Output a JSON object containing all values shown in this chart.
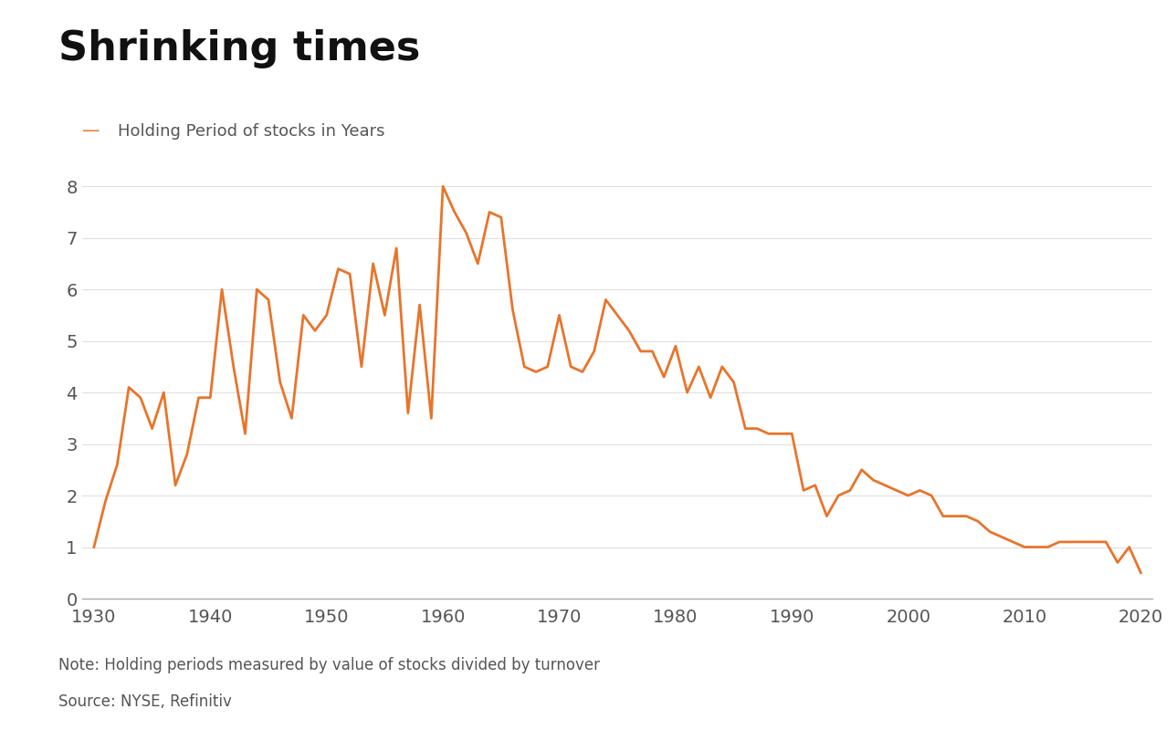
{
  "title": "Shrinking times",
  "legend_label": "Holding Period of stocks in Years",
  "note": "Note: Holding periods measured by value of stocks divided by turnover",
  "source": "Source: NYSE, Refinitiv",
  "line_color": "#E8742A",
  "background_color": "#ffffff",
  "title_fontsize": 32,
  "legend_fontsize": 13,
  "note_fontsize": 12,
  "tick_fontsize": 14,
  "ylim": [
    0,
    8.5
  ],
  "yticks": [
    0,
    1,
    2,
    3,
    4,
    5,
    6,
    7,
    8
  ],
  "xlim": [
    1929,
    2021
  ],
  "xticks": [
    1930,
    1940,
    1950,
    1960,
    1970,
    1980,
    1990,
    2000,
    2010,
    2020
  ],
  "years": [
    1930,
    1931,
    1932,
    1933,
    1934,
    1935,
    1936,
    1937,
    1938,
    1939,
    1940,
    1941,
    1942,
    1943,
    1944,
    1945,
    1946,
    1947,
    1948,
    1949,
    1950,
    1951,
    1952,
    1953,
    1954,
    1955,
    1956,
    1957,
    1958,
    1959,
    1960,
    1961,
    1962,
    1963,
    1964,
    1965,
    1966,
    1967,
    1968,
    1969,
    1970,
    1971,
    1972,
    1973,
    1974,
    1975,
    1976,
    1977,
    1978,
    1979,
    1980,
    1981,
    1982,
    1983,
    1984,
    1985,
    1986,
    1987,
    1988,
    1989,
    1990,
    1991,
    1992,
    1993,
    1994,
    1995,
    1996,
    1997,
    1998,
    1999,
    2000,
    2001,
    2002,
    2003,
    2004,
    2005,
    2006,
    2007,
    2008,
    2009,
    2010,
    2011,
    2012,
    2013,
    2014,
    2015,
    2016,
    2017,
    2018,
    2019,
    2020
  ],
  "values": [
    1.0,
    1.9,
    2.6,
    4.1,
    3.9,
    3.3,
    4.0,
    2.2,
    2.8,
    3.9,
    3.9,
    6.0,
    4.5,
    3.2,
    6.0,
    5.8,
    4.2,
    3.5,
    5.5,
    5.2,
    5.5,
    6.4,
    6.3,
    4.5,
    6.5,
    5.5,
    6.8,
    3.6,
    5.7,
    3.5,
    8.0,
    7.5,
    7.1,
    6.5,
    7.5,
    7.4,
    5.6,
    4.5,
    4.4,
    4.5,
    5.5,
    4.5,
    4.4,
    4.8,
    5.8,
    5.5,
    5.2,
    4.8,
    4.8,
    4.3,
    4.9,
    4.0,
    4.5,
    3.9,
    4.5,
    4.2,
    3.3,
    3.3,
    3.2,
    3.2,
    3.2,
    2.1,
    2.2,
    1.6,
    2.0,
    2.1,
    2.5,
    2.3,
    2.2,
    2.1,
    2.0,
    2.1,
    2.0,
    1.6,
    1.6,
    1.6,
    1.5,
    1.3,
    1.2,
    1.1,
    1.0,
    1.0,
    1.0,
    1.1,
    1.1,
    1.1,
    1.1,
    1.1,
    0.7,
    1.0,
    0.5
  ]
}
